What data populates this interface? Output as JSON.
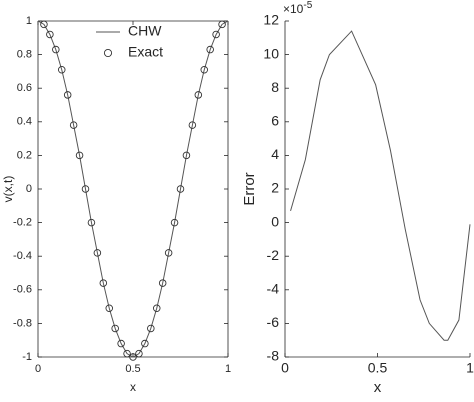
{
  "chart_data": [
    {
      "type": "line",
      "xlabel": "x",
      "ylabel": "v(x,t)",
      "xlim": [
        0,
        1
      ],
      "xticks": [
        0,
        0.5,
        1
      ],
      "ylim": [
        -1,
        1
      ],
      "yticks": [
        -1,
        -0.8,
        -0.6,
        -0.4,
        -0.2,
        0,
        0.2,
        0.4,
        0.6,
        0.8,
        1
      ],
      "legend": "top",
      "box": true,
      "series": [
        {
          "name": "CHW",
          "style": "line",
          "color": "#555555",
          "x": [
            0,
            0.03125,
            0.0625,
            0.09375,
            0.125,
            0.15625,
            0.1875,
            0.21875,
            0.25,
            0.28125,
            0.3125,
            0.34375,
            0.375,
            0.40625,
            0.4375,
            0.46875,
            0.5,
            0.53125,
            0.5625,
            0.59375,
            0.625,
            0.65625,
            0.6875,
            0.71875,
            0.75,
            0.78125,
            0.8125,
            0.84375,
            0.875,
            0.90625,
            0.9375,
            0.96875,
            1
          ],
          "values": [
            1,
            0.98,
            0.92,
            0.83,
            0.71,
            0.56,
            0.38,
            0.2,
            0,
            -0.2,
            -0.38,
            -0.56,
            -0.71,
            -0.83,
            -0.92,
            -0.98,
            -1,
            -0.98,
            -0.92,
            -0.83,
            -0.71,
            -0.56,
            -0.38,
            -0.2,
            0,
            0.2,
            0.38,
            0.56,
            0.71,
            0.83,
            0.92,
            0.98,
            1
          ]
        },
        {
          "name": "Exact",
          "style": "marker",
          "color": "#333333",
          "x": [
            0.03125,
            0.0625,
            0.09375,
            0.125,
            0.15625,
            0.1875,
            0.21875,
            0.25,
            0.28125,
            0.3125,
            0.34375,
            0.375,
            0.40625,
            0.4375,
            0.46875,
            0.5,
            0.53125,
            0.5625,
            0.59375,
            0.625,
            0.65625,
            0.6875,
            0.71875,
            0.75,
            0.78125,
            0.8125,
            0.84375,
            0.875,
            0.90625,
            0.9375,
            0.96875
          ],
          "values": [
            0.98,
            0.92,
            0.83,
            0.71,
            0.56,
            0.38,
            0.2,
            0,
            -0.2,
            -0.38,
            -0.56,
            -0.71,
            -0.83,
            -0.92,
            -0.98,
            -1,
            -0.98,
            -0.92,
            -0.83,
            -0.71,
            -0.56,
            -0.38,
            -0.2,
            0,
            0.2,
            0.38,
            0.56,
            0.71,
            0.83,
            0.92,
            0.98
          ]
        }
      ]
    },
    {
      "type": "line",
      "xlabel": "x",
      "ylabel": "Error",
      "y_multiplier": "×10",
      "y_multiplier_exponent": "-5",
      "xlim": [
        0,
        1
      ],
      "xticks": [
        0,
        0.5,
        1
      ],
      "ylim": [
        -8,
        12
      ],
      "yticks": [
        -8,
        -6,
        -4,
        -2,
        0,
        2,
        4,
        6,
        8,
        10,
        12
      ],
      "box": false,
      "color": "#555555",
      "x": [
        0.03,
        0.11,
        0.19,
        0.24,
        0.36,
        0.49,
        0.57,
        0.65,
        0.73,
        0.78,
        0.86,
        0.88,
        0.94,
        1
      ],
      "values": [
        0.7,
        3.75,
        8.5,
        10,
        11.4,
        8.2,
        4.3,
        -0.4,
        -4.6,
        -6,
        -7,
        -7,
        -5.8,
        -0.1
      ]
    }
  ]
}
